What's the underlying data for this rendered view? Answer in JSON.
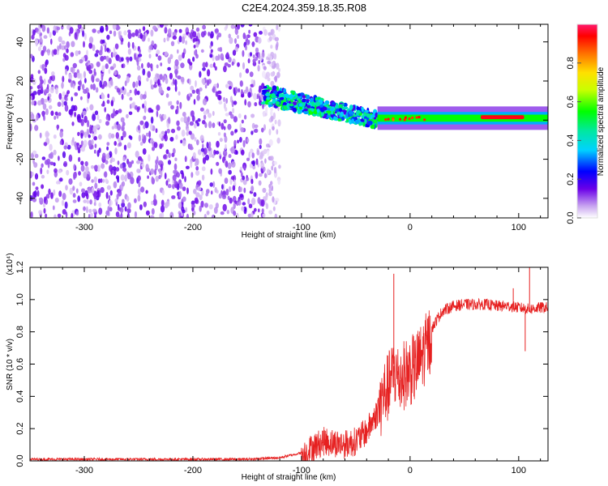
{
  "title": "C2E4.2024.359.18.35.R08",
  "colors": {
    "signal": "#e62020",
    "frame": "#000000"
  },
  "chart_data": [
    {
      "type": "heatmap",
      "name": "spectrogram",
      "xlabel": "Height of straight line (km)",
      "ylabel": "Frequency (Hz)",
      "xlim": [
        -350,
        127
      ],
      "ylim": [
        -50,
        49
      ],
      "xticks": [
        -300,
        -200,
        -100,
        0,
        100
      ],
      "yticks": [
        -40,
        -20,
        0,
        20,
        40
      ],
      "colorbar": {
        "label": "Normalized spectral amplitude",
        "range": [
          0.0,
          1.0
        ],
        "ticks": [
          0.0,
          0.2,
          0.4,
          0.6,
          0.8
        ]
      },
      "regions": [
        {
          "label": "broadband noise",
          "x_range": [
            -350,
            -135
          ],
          "freq_range": [
            -50,
            49
          ],
          "amplitude": 0.1
        },
        {
          "label": "descending tail",
          "x_range": [
            -135,
            -30
          ],
          "freq_center": [
            13,
            0
          ],
          "freq_width": [
            10,
            8
          ],
          "amplitude": 0.4
        },
        {
          "label": "steady tone",
          "x_range": [
            -30,
            127
          ],
          "freq_center": [
            1,
            1
          ],
          "freq_width": [
            4,
            4
          ],
          "amplitude": 0.55
        },
        {
          "label": "peak",
          "x_range": [
            65,
            105
          ],
          "freq_center": [
            1.5,
            1.5
          ],
          "freq_width": [
            2,
            2
          ],
          "amplitude": 0.95
        }
      ]
    },
    {
      "type": "line",
      "name": "snr",
      "xlabel": "Height of straight line (km)",
      "ylabel": "SNR (10 * v/v)",
      "exponent_label": "(x10⁴)",
      "xlim": [
        -350,
        127
      ],
      "ylim": [
        0.0,
        1.2
      ],
      "xticks": [
        -300,
        -200,
        -100,
        0,
        100
      ],
      "yticks": [
        0.0,
        0.2,
        0.4,
        0.6,
        0.8,
        1.0,
        1.2
      ],
      "series": [
        {
          "name": "SNR",
          "x": [
            -350,
            -300,
            -250,
            -200,
            -150,
            -120,
            -100,
            -90,
            -80,
            -70,
            -60,
            -50,
            -40,
            -30,
            -25,
            -20,
            -15,
            -10,
            -5,
            0,
            5,
            10,
            15,
            20,
            25,
            30,
            40,
            50,
            60,
            70,
            80,
            90,
            100,
            110,
            120,
            127
          ],
          "y": [
            0.01,
            0.01,
            0.01,
            0.01,
            0.01,
            0.02,
            0.05,
            0.1,
            0.14,
            0.13,
            0.12,
            0.14,
            0.2,
            0.32,
            0.45,
            0.5,
            0.6,
            0.55,
            0.58,
            0.6,
            0.62,
            0.68,
            0.75,
            0.82,
            0.88,
            0.93,
            0.96,
            0.97,
            0.97,
            0.97,
            0.96,
            0.96,
            0.95,
            0.94,
            0.95,
            0.95
          ],
          "spikes": [
            {
              "x": -15,
              "y": 1.16
            },
            {
              "x": 95,
              "y": 1.07
            },
            {
              "x": 106,
              "y": 0.68
            },
            {
              "x": 110,
              "y": 1.2
            }
          ]
        }
      ]
    }
  ]
}
